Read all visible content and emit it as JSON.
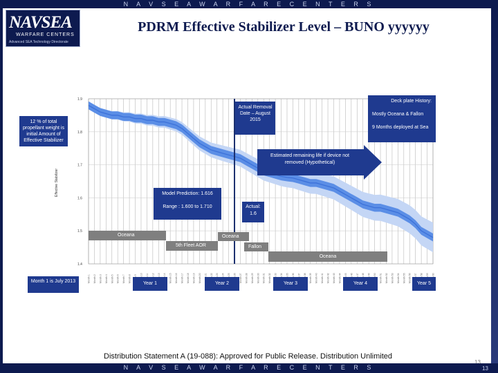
{
  "header": {
    "banner": "N A V S E A   W A R F A R E   C E N T E R S",
    "logo_main": "NAVSEA",
    "logo_sub": "WARFARE CENTERS",
    "logo_tag": "Advanced SEA Technology Directorate",
    "title": "PDRM Effective Stabilizer Level – BUNO yyyyyy"
  },
  "annotations": {
    "initial_note": "12 % of total propellant weight is initial Amount of Effective Stabilizer",
    "removal_date": "Actual Removal Date – August 2015",
    "deckplate_title": "Deck plate History:",
    "deckplate_line1": "Mostly Oceana & Fallon",
    "deckplate_line2": "9 Months deployed at Sea",
    "estimated_arrow": "Estimated remaining life if device not removed (Hypothetical)",
    "model_prediction": "Model Prediction: 1.616",
    "model_range": "Range : 1.600 to 1.710",
    "actual_value": "Actual: 1.6"
  },
  "deployment_bars": {
    "oceana_1": "Oceana",
    "oceana_2": "Oceana",
    "fifth_fleet": "5th Fleet AOR",
    "fallon": "Fallon",
    "oceana_3": "Oceana"
  },
  "timeline": {
    "month1": "Month 1 is July 2013",
    "year1": "Year 1",
    "year2": "Year 2",
    "year3": "Year 3",
    "year4": "Year 4",
    "year5": "Year 5"
  },
  "footer": {
    "distribution": "Distribution Statement A (19-088): Approved for Public Release. Distribution Unlimited",
    "page_number": "13"
  },
  "chart_data": {
    "type": "area",
    "ylabel": "Effective Stabilizer",
    "yticks": [
      "1.4",
      "1.5",
      "1.6",
      "1.7",
      "1.8",
      "1.9"
    ],
    "ylim": [
      1.4,
      1.9
    ],
    "x_count": 60,
    "removal_month": 26,
    "series": [
      {
        "name": "",
        "values": [
          1.88,
          1.87,
          1.86,
          1.855,
          1.85,
          1.85,
          1.845,
          1.845,
          1.84,
          1.84,
          1.835,
          1.835,
          1.83,
          1.83,
          1.825,
          1.82,
          1.81,
          1.795,
          1.78,
          1.765,
          1.755,
          1.745,
          1.74,
          1.735,
          1.73,
          1.725,
          1.72,
          1.71,
          1.7,
          1.69,
          1.68,
          1.675,
          1.67,
          1.665,
          1.662,
          1.66,
          1.655,
          1.65,
          1.645,
          1.645,
          1.64,
          1.635,
          1.63,
          1.62,
          1.61,
          1.6,
          1.59,
          1.58,
          1.575,
          1.57,
          1.57,
          1.565,
          1.56,
          1.555,
          1.545,
          1.535,
          1.52,
          1.5,
          1.49,
          1.48
        ]
      }
    ],
    "band_inner": 0.012,
    "band_outer_start": 0.01,
    "band_outer_end": 0.045,
    "colors": {
      "line": "#3a6fd8",
      "inner": "#5b8ee6",
      "outer": "#c4d6f5",
      "removal": "#1a2f6e",
      "box": "#1f3a8f",
      "gray": "#7f7f7f"
    }
  }
}
